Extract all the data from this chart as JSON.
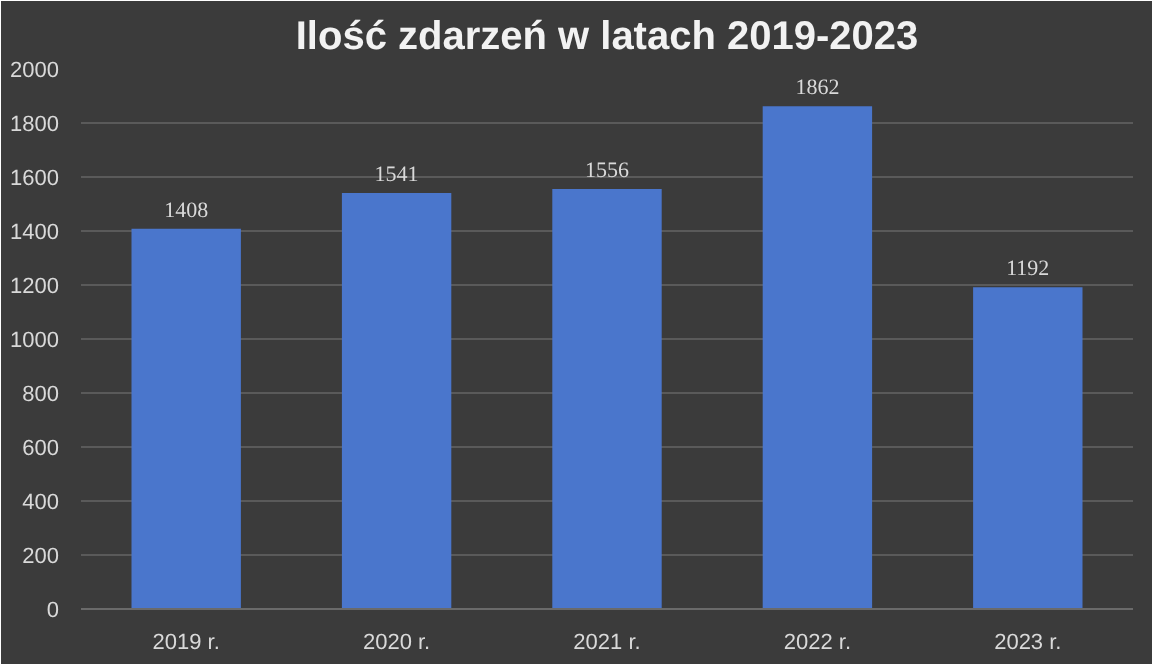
{
  "chart_data": {
    "type": "bar",
    "title": "Ilość zdarzeń w latach 2019-2023",
    "categories": [
      "2019 r.",
      "2020 r.",
      "2021 r.",
      "2022 r.",
      "2023 r."
    ],
    "values": [
      1408,
      1541,
      1556,
      1862,
      1192
    ],
    "color": "#4a76cc",
    "ylim": [
      0,
      2000
    ],
    "yticks": [
      0,
      200,
      400,
      600,
      800,
      1000,
      1200,
      1400,
      1600,
      1800,
      2000
    ],
    "grid": "y",
    "data_labels": true
  }
}
